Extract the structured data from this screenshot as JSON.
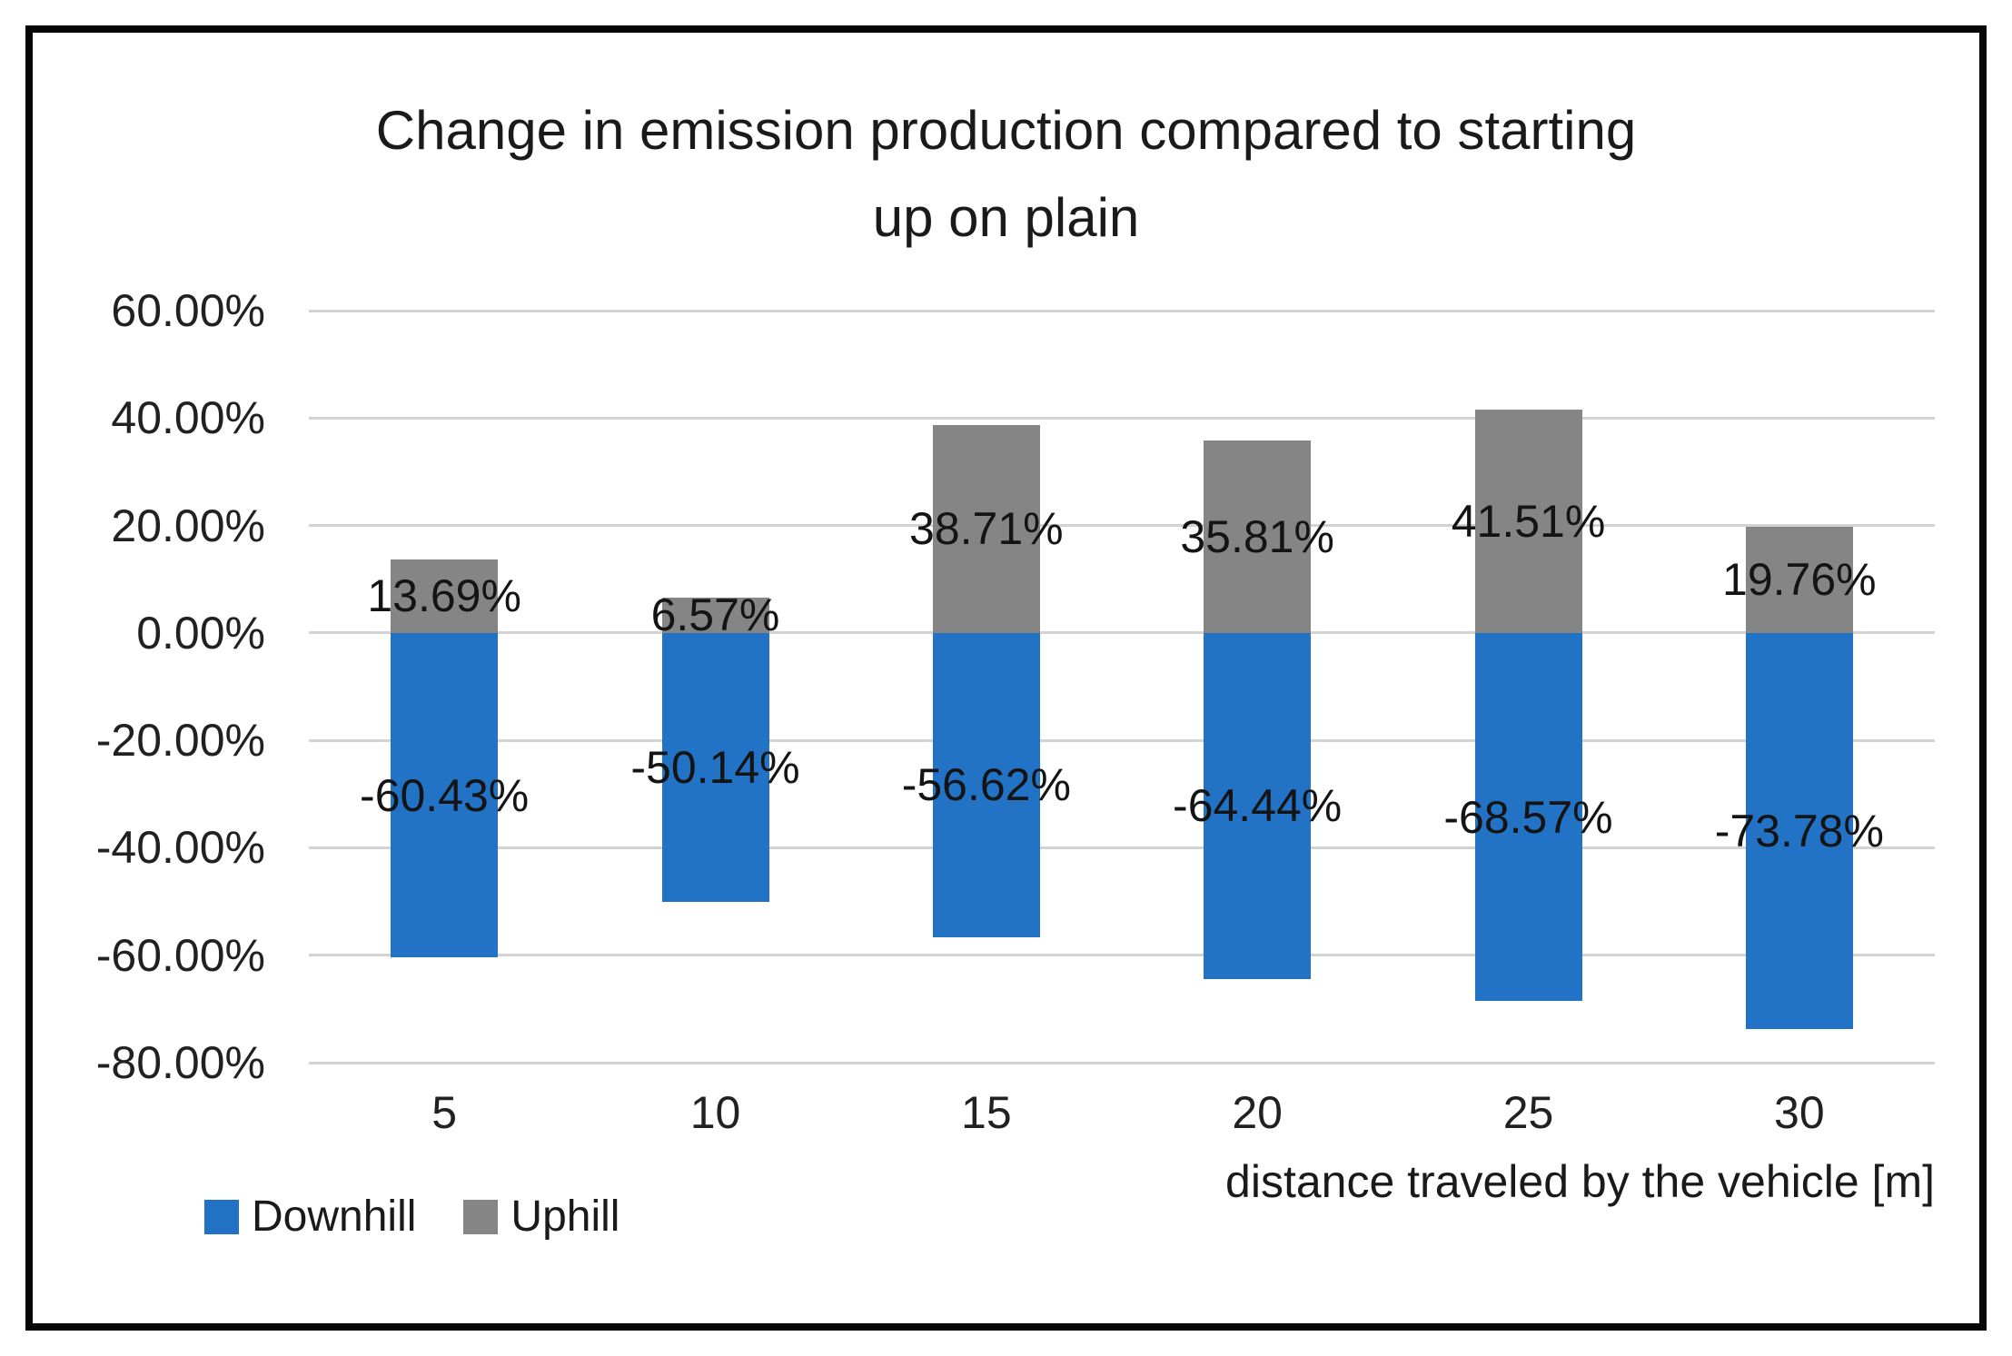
{
  "chart_data": {
    "type": "bar",
    "title": "Change in emission production compared to starting up on plain",
    "title_lines": [
      "Change in emission production compared to starting",
      "up on plain"
    ],
    "categories": [
      "5",
      "10",
      "15",
      "20",
      "25",
      "30"
    ],
    "series": [
      {
        "name": "Downhill",
        "color": "#2272c6",
        "values": [
          -60.43,
          -50.14,
          -56.62,
          -64.44,
          -68.57,
          -73.78
        ],
        "labels": [
          "-60.43%",
          "-50.14%",
          "-56.62%",
          "-64.44%",
          "-68.57%",
          "-73.78%"
        ]
      },
      {
        "name": "Uphill",
        "color": "#858585",
        "values": [
          13.69,
          6.57,
          38.71,
          35.81,
          41.51,
          19.76
        ],
        "labels": [
          "13.69%",
          "6.57%",
          "38.71%",
          "35.81%",
          "41.51%",
          "19.76%"
        ]
      }
    ],
    "xlabel": "distance traveled by the vehicle [m]",
    "ylabel": "",
    "ylim": [
      -80,
      60
    ],
    "ytick_step": 20,
    "ytick_labels": [
      "60.00%",
      "40.00%",
      "20.00%",
      "0.00%",
      "-20.00%",
      "-40.00%",
      "-60.00%",
      "-80.00%"
    ],
    "grid": true,
    "gridline_color": "#d3d3d3",
    "legend_position": "bottom-left"
  }
}
